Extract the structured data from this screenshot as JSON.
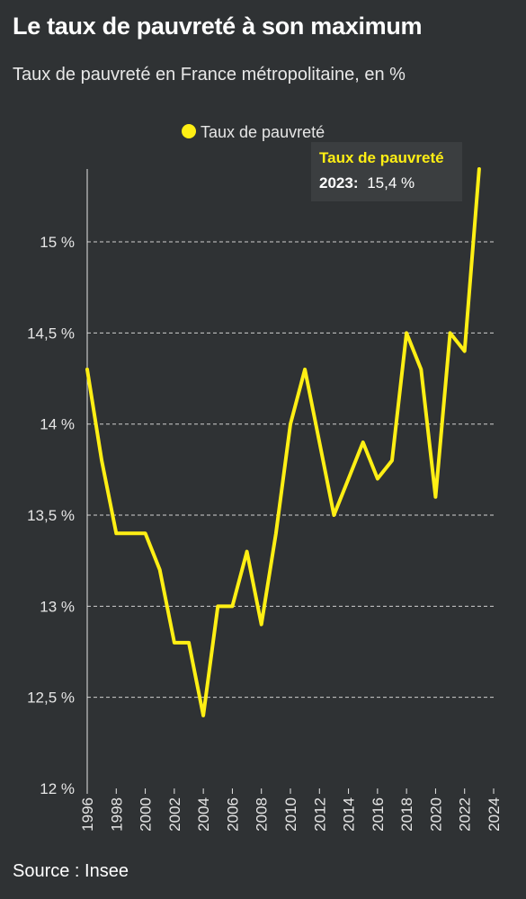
{
  "header": {
    "title": "Le taux de pauvreté à son maximum",
    "subtitle": "Taux de pauvreté en France métropolitaine, en %"
  },
  "footer": {
    "source": "Source : Insee"
  },
  "colors": {
    "background": "#2f3234",
    "series": "#ffef14",
    "grid": "#d0d0d0",
    "tooltip_bg": "#3b3e40"
  },
  "chart_data": {
    "type": "line",
    "title": "",
    "xlabel": "",
    "ylabel": "",
    "xlim": [
      1996,
      2024
    ],
    "ylim": [
      12,
      15.4
    ],
    "grid": true,
    "legend_position": "top",
    "x_ticks": [
      "1996",
      "1998",
      "2000",
      "2002",
      "2004",
      "2006",
      "2008",
      "2010",
      "2012",
      "2014",
      "2016",
      "2018",
      "2020",
      "2022",
      "2024"
    ],
    "y_ticks": [
      {
        "value": 12,
        "label": "12 %"
      },
      {
        "value": 12.5,
        "label": "12,5 %"
      },
      {
        "value": 13,
        "label": "13 %"
      },
      {
        "value": 13.5,
        "label": "13,5 %"
      },
      {
        "value": 14,
        "label": "14 %"
      },
      {
        "value": 14.5,
        "label": "14,5 %"
      },
      {
        "value": 15,
        "label": "15 %"
      }
    ],
    "series": [
      {
        "name": "Taux de pauvreté",
        "x": [
          1996,
          1997,
          1998,
          1999,
          2000,
          2001,
          2002,
          2003,
          2004,
          2005,
          2006,
          2007,
          2008,
          2009,
          2010,
          2011,
          2012,
          2013,
          2014,
          2015,
          2016,
          2017,
          2018,
          2019,
          2020,
          2021,
          2022,
          2023
        ],
        "values": [
          14.3,
          13.8,
          13.4,
          13.4,
          13.4,
          13.2,
          12.8,
          12.8,
          12.4,
          13.0,
          13.0,
          13.3,
          12.9,
          13.4,
          14.0,
          14.3,
          13.9,
          13.5,
          13.7,
          13.9,
          13.7,
          13.8,
          14.5,
          14.3,
          13.6,
          14.5,
          14.4,
          15.4
        ]
      }
    ],
    "annotation": {
      "title": "Taux de pauvreté",
      "year_label": "2023:",
      "value_label": "15,4 %"
    }
  }
}
